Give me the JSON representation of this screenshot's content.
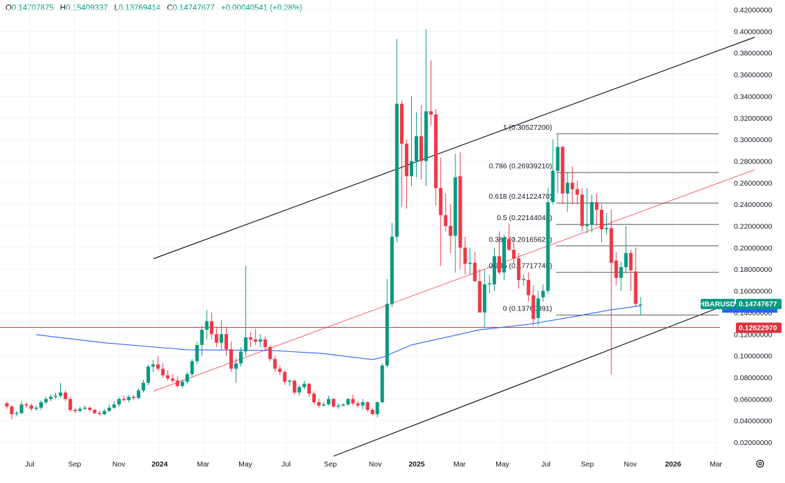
{
  "legend": {
    "open_key": "O",
    "open": "0.14707875",
    "high_key": "H",
    "high": "0.15409337",
    "low_key": "L",
    "low": "0.13769414",
    "close_key": "C",
    "close": "0.14747677",
    "change": "+0.00040541 (+0.28%)"
  },
  "colors": {
    "up": "#089981",
    "down": "#f23645",
    "ma": "#2962ff",
    "trend_black": "#131722",
    "trend_red": "#f23645",
    "support": "#e0313f",
    "fib": "#555555"
  },
  "symbol_tag": "HBARUSD",
  "last_price": "0.14747677",
  "support_price": "0.12622970",
  "settings_icon": "gear-icon",
  "chart_data": {
    "type": "candlestick",
    "title": "",
    "xlabel": "",
    "ylabel": "",
    "ylim": [
      0.02,
      0.42
    ],
    "grid": true,
    "y_ticks": [
      "0.42000000",
      "0.40000000",
      "0.38000000",
      "0.36000000",
      "0.34000000",
      "0.32000000",
      "0.30000000",
      "0.28000000",
      "0.26000000",
      "0.24000000",
      "0.22000000",
      "0.20000000",
      "0.18000000",
      "0.16000000",
      "0.14000000",
      "0.12000000",
      "0.10000000",
      "0.08000000",
      "0.06000000",
      "0.04000000",
      "0.02000000"
    ],
    "x_ticks": [
      "Jul",
      "Sep",
      "Nov",
      "2024",
      "Mar",
      "May",
      "Jul",
      "Sep",
      "Nov",
      "2025",
      "Mar",
      "May",
      "Jul",
      "Sep",
      "Nov",
      "2026",
      "Mar"
    ],
    "candles_ohlc": [
      [
        0.056,
        0.058,
        0.051,
        0.053
      ],
      [
        0.053,
        0.054,
        0.041,
        0.046
      ],
      [
        0.046,
        0.049,
        0.044,
        0.047
      ],
      [
        0.047,
        0.058,
        0.046,
        0.055
      ],
      [
        0.055,
        0.057,
        0.052,
        0.054
      ],
      [
        0.054,
        0.056,
        0.049,
        0.051
      ],
      [
        0.051,
        0.054,
        0.049,
        0.052
      ],
      [
        0.052,
        0.059,
        0.05,
        0.057
      ],
      [
        0.057,
        0.062,
        0.055,
        0.06
      ],
      [
        0.06,
        0.064,
        0.058,
        0.062
      ],
      [
        0.062,
        0.066,
        0.06,
        0.063
      ],
      [
        0.063,
        0.075,
        0.061,
        0.066
      ],
      [
        0.066,
        0.068,
        0.058,
        0.06
      ],
      [
        0.06,
        0.062,
        0.048,
        0.05
      ],
      [
        0.05,
        0.052,
        0.047,
        0.049
      ],
      [
        0.049,
        0.053,
        0.048,
        0.051
      ],
      [
        0.051,
        0.054,
        0.05,
        0.052
      ],
      [
        0.052,
        0.053,
        0.048,
        0.05
      ],
      [
        0.05,
        0.051,
        0.046,
        0.047
      ],
      [
        0.047,
        0.049,
        0.045,
        0.046
      ],
      [
        0.046,
        0.051,
        0.045,
        0.049
      ],
      [
        0.049,
        0.055,
        0.048,
        0.052
      ],
      [
        0.052,
        0.058,
        0.051,
        0.055
      ],
      [
        0.055,
        0.062,
        0.053,
        0.06
      ],
      [
        0.06,
        0.063,
        0.058,
        0.059
      ],
      [
        0.059,
        0.064,
        0.057,
        0.062
      ],
      [
        0.062,
        0.064,
        0.059,
        0.061
      ],
      [
        0.061,
        0.07,
        0.06,
        0.068
      ],
      [
        0.068,
        0.078,
        0.066,
        0.075
      ],
      [
        0.075,
        0.092,
        0.073,
        0.09
      ],
      [
        0.09,
        0.096,
        0.085,
        0.092
      ],
      [
        0.092,
        0.1,
        0.086,
        0.088
      ],
      [
        0.088,
        0.093,
        0.08,
        0.082
      ],
      [
        0.082,
        0.087,
        0.077,
        0.079
      ],
      [
        0.079,
        0.083,
        0.075,
        0.077
      ],
      [
        0.077,
        0.081,
        0.071,
        0.072
      ],
      [
        0.072,
        0.078,
        0.07,
        0.076
      ],
      [
        0.076,
        0.085,
        0.074,
        0.083
      ],
      [
        0.083,
        0.097,
        0.081,
        0.095
      ],
      [
        0.095,
        0.113,
        0.092,
        0.11
      ],
      [
        0.11,
        0.128,
        0.1,
        0.124
      ],
      [
        0.124,
        0.142,
        0.115,
        0.132
      ],
      [
        0.132,
        0.14,
        0.115,
        0.12
      ],
      [
        0.12,
        0.127,
        0.108,
        0.112
      ],
      [
        0.112,
        0.133,
        0.105,
        0.12
      ],
      [
        0.12,
        0.127,
        0.1,
        0.106
      ],
      [
        0.106,
        0.113,
        0.085,
        0.088
      ],
      [
        0.088,
        0.098,
        0.075,
        0.093
      ],
      [
        0.093,
        0.108,
        0.09,
        0.104
      ],
      [
        0.104,
        0.183,
        0.1,
        0.117
      ],
      [
        0.117,
        0.122,
        0.108,
        0.115
      ],
      [
        0.115,
        0.125,
        0.11,
        0.113
      ],
      [
        0.113,
        0.12,
        0.108,
        0.115
      ],
      [
        0.115,
        0.118,
        0.104,
        0.108
      ],
      [
        0.108,
        0.11,
        0.095,
        0.097
      ],
      [
        0.097,
        0.1,
        0.085,
        0.088
      ],
      [
        0.088,
        0.091,
        0.082,
        0.085
      ],
      [
        0.085,
        0.087,
        0.073,
        0.076
      ],
      [
        0.076,
        0.078,
        0.072,
        0.077
      ],
      [
        0.077,
        0.078,
        0.064,
        0.066
      ],
      [
        0.066,
        0.073,
        0.063,
        0.071
      ],
      [
        0.071,
        0.077,
        0.069,
        0.074
      ],
      [
        0.074,
        0.075,
        0.062,
        0.065
      ],
      [
        0.065,
        0.067,
        0.055,
        0.057
      ],
      [
        0.057,
        0.06,
        0.052,
        0.054
      ],
      [
        0.054,
        0.057,
        0.053,
        0.055
      ],
      [
        0.055,
        0.063,
        0.054,
        0.06
      ],
      [
        0.06,
        0.061,
        0.052,
        0.053
      ],
      [
        0.053,
        0.056,
        0.051,
        0.054
      ],
      [
        0.054,
        0.056,
        0.053,
        0.055
      ],
      [
        0.055,
        0.061,
        0.054,
        0.06
      ],
      [
        0.06,
        0.064,
        0.054,
        0.056
      ],
      [
        0.056,
        0.058,
        0.052,
        0.054
      ],
      [
        0.054,
        0.06,
        0.05,
        0.057
      ],
      [
        0.057,
        0.058,
        0.048,
        0.05
      ],
      [
        0.05,
        0.052,
        0.045,
        0.046
      ],
      [
        0.046,
        0.058,
        0.043,
        0.057
      ],
      [
        0.057,
        0.093,
        0.056,
        0.091
      ],
      [
        0.091,
        0.171,
        0.089,
        0.148
      ],
      [
        0.148,
        0.223,
        0.145,
        0.21
      ],
      [
        0.21,
        0.393,
        0.205,
        0.333
      ],
      [
        0.333,
        0.336,
        0.238,
        0.296
      ],
      [
        0.296,
        0.3,
        0.236,
        0.266
      ],
      [
        0.266,
        0.34,
        0.257,
        0.28
      ],
      [
        0.28,
        0.325,
        0.265,
        0.303
      ],
      [
        0.303,
        0.332,
        0.263,
        0.28
      ],
      [
        0.28,
        0.402,
        0.257,
        0.326
      ],
      [
        0.326,
        0.373,
        0.313,
        0.323
      ],
      [
        0.323,
        0.328,
        0.239,
        0.255
      ],
      [
        0.255,
        0.283,
        0.183,
        0.23
      ],
      [
        0.23,
        0.25,
        0.215,
        0.22
      ],
      [
        0.22,
        0.24,
        0.195,
        0.211
      ],
      [
        0.211,
        0.287,
        0.177,
        0.265
      ],
      [
        0.266,
        0.288,
        0.18,
        0.2
      ],
      [
        0.2,
        0.21,
        0.175,
        0.185
      ],
      [
        0.185,
        0.2,
        0.175,
        0.186
      ],
      [
        0.186,
        0.196,
        0.168,
        0.169
      ],
      [
        0.169,
        0.18,
        0.14,
        0.14
      ],
      [
        0.14,
        0.18,
        0.126,
        0.166
      ],
      [
        0.166,
        0.175,
        0.158,
        0.167
      ],
      [
        0.166,
        0.2,
        0.16,
        0.192
      ],
      [
        0.192,
        0.215,
        0.175,
        0.177
      ],
      [
        0.177,
        0.212,
        0.17,
        0.209
      ],
      [
        0.208,
        0.222,
        0.197,
        0.198
      ],
      [
        0.198,
        0.21,
        0.185,
        0.19
      ],
      [
        0.19,
        0.195,
        0.162,
        0.17
      ],
      [
        0.17,
        0.175,
        0.165,
        0.171
      ],
      [
        0.17,
        0.177,
        0.15,
        0.156
      ],
      [
        0.156,
        0.165,
        0.128,
        0.134
      ],
      [
        0.135,
        0.16,
        0.128,
        0.153
      ],
      [
        0.154,
        0.166,
        0.15,
        0.16
      ],
      [
        0.16,
        0.255,
        0.157,
        0.242
      ],
      [
        0.242,
        0.3,
        0.24,
        0.271
      ],
      [
        0.271,
        0.305,
        0.25,
        0.293
      ],
      [
        0.293,
        0.294,
        0.24,
        0.25
      ],
      [
        0.25,
        0.27,
        0.233,
        0.26
      ],
      [
        0.26,
        0.275,
        0.24,
        0.254
      ],
      [
        0.254,
        0.262,
        0.24,
        0.249
      ],
      [
        0.249,
        0.255,
        0.215,
        0.22
      ],
      [
        0.22,
        0.255,
        0.213,
        0.221
      ],
      [
        0.221,
        0.249,
        0.214,
        0.242
      ],
      [
        0.242,
        0.25,
        0.22,
        0.235
      ],
      [
        0.235,
        0.24,
        0.205,
        0.217
      ],
      [
        0.217,
        0.232,
        0.212,
        0.218
      ],
      [
        0.218,
        0.235,
        0.083,
        0.186
      ],
      [
        0.188,
        0.196,
        0.165,
        0.172
      ],
      [
        0.172,
        0.187,
        0.16,
        0.182
      ],
      [
        0.182,
        0.22,
        0.176,
        0.195
      ],
      [
        0.195,
        0.198,
        0.16,
        0.179
      ],
      [
        0.178,
        0.2,
        0.145,
        0.148
      ],
      [
        0.14707875,
        0.15409337,
        0.13769414,
        0.14747677
      ]
    ],
    "moving_average": [
      [
        6,
        0.1195
      ],
      [
        20,
        0.112
      ],
      [
        37,
        0.1055
      ],
      [
        54,
        0.105
      ],
      [
        65,
        0.102
      ],
      [
        75,
        0.0965
      ],
      [
        77,
        0.0985
      ],
      [
        83,
        0.11
      ],
      [
        97,
        0.124
      ],
      [
        107,
        0.129
      ],
      [
        117,
        0.1367
      ],
      [
        123,
        0.1418
      ],
      [
        130,
        0.1463
      ]
    ],
    "horizontal_level": 0.1262297,
    "fibonacci": [
      {
        "ratio": "1",
        "price": 0.305272,
        "label": "1 (0.30527200)"
      },
      {
        "ratio": "0.786",
        "price": 0.2693921,
        "label": "0.786 (0.26939210)"
      },
      {
        "ratio": "0.618",
        "price": 0.2412247,
        "label": "0.618 (0.24122470)"
      },
      {
        "ratio": "0.5",
        "price": 0.22144046,
        "label": "0.5 (0.22144046)"
      },
      {
        "ratio": "0.382",
        "price": 0.20165621,
        "label": "0.382 (0.20165621)"
      },
      {
        "ratio": "0.236",
        "price": 0.1771774,
        "label": "0.236 (0.17717740)"
      },
      {
        "ratio": "0",
        "price": 0.13760891,
        "label": "0 (0.13760891)"
      }
    ]
  }
}
